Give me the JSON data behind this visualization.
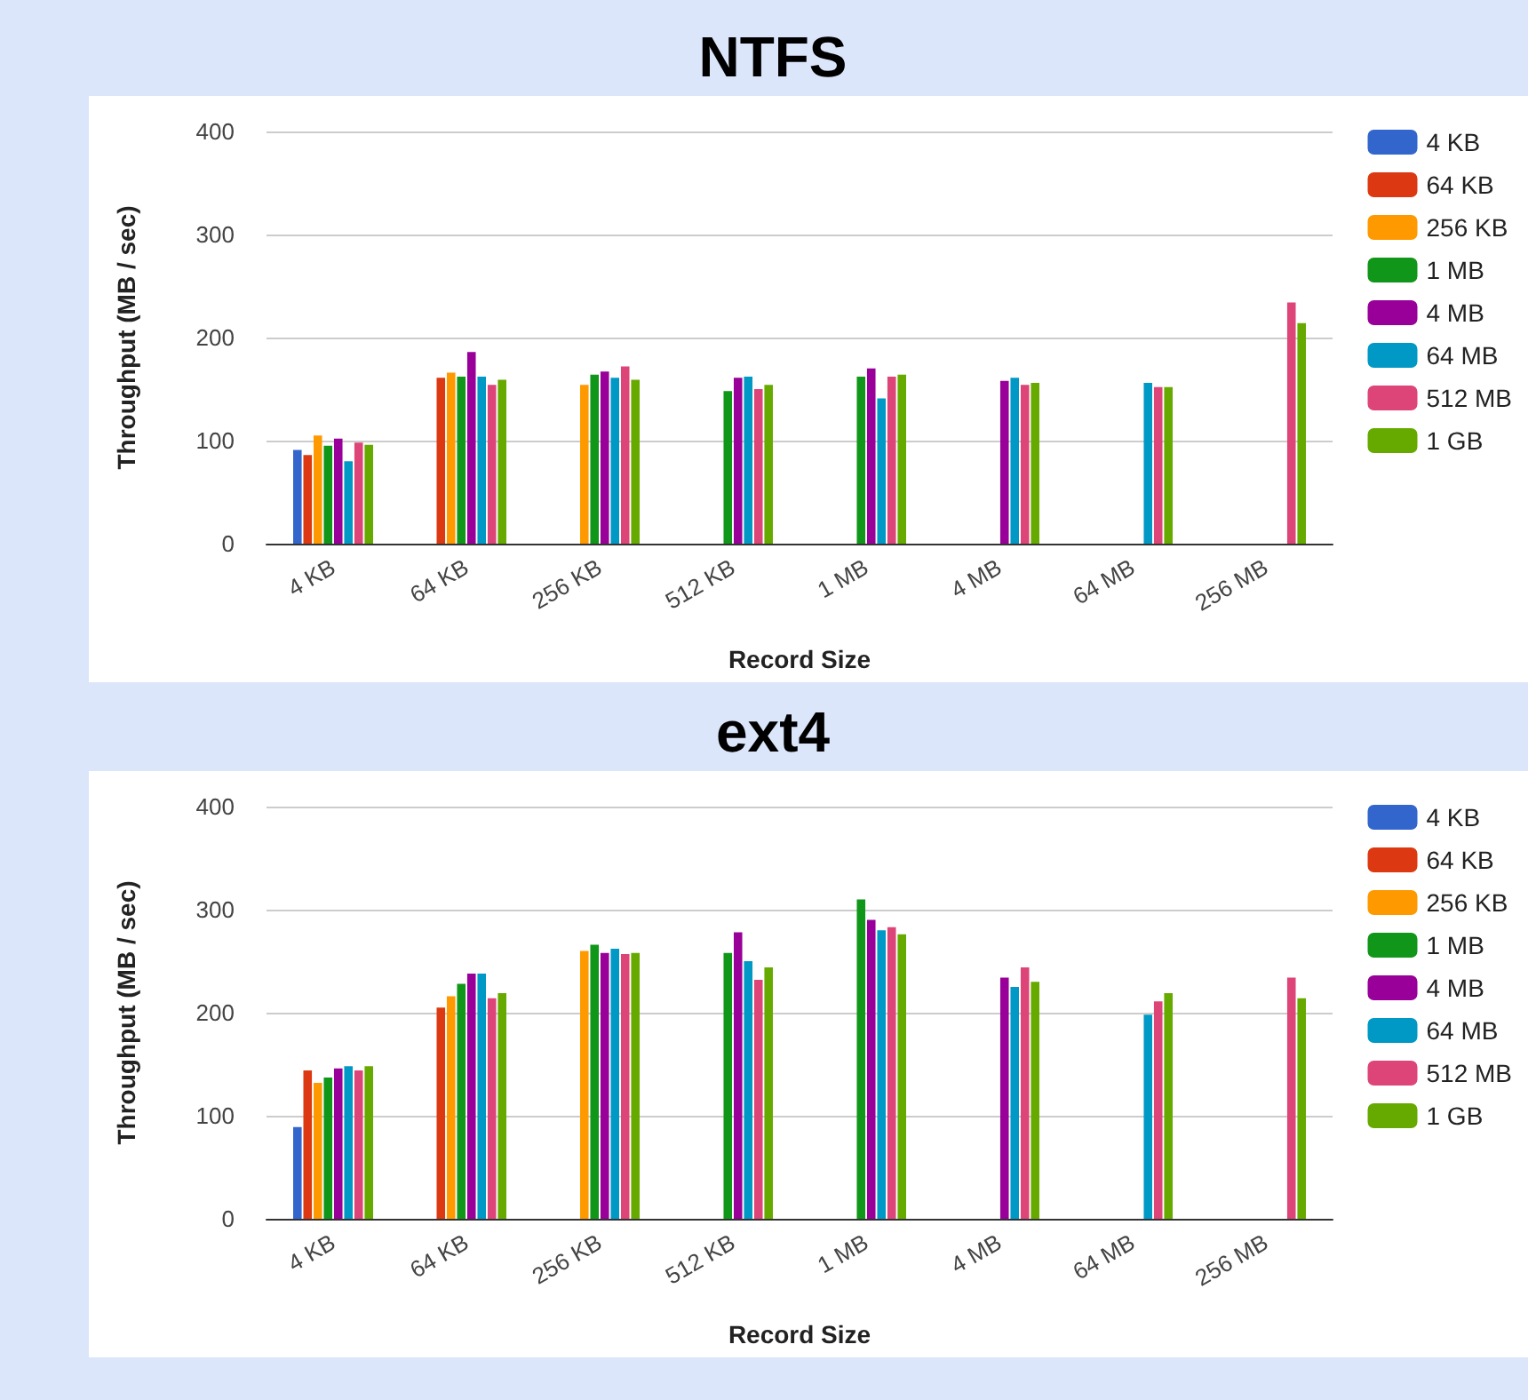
{
  "chart_data": [
    {
      "type": "bar",
      "title": "NTFS",
      "xlabel": "Record Size",
      "ylabel": "Throughput (MB / sec)",
      "categories": [
        "4 KB",
        "64 KB",
        "256 KB",
        "512 KB",
        "1 MB",
        "4 MB",
        "64 MB",
        "256 MB"
      ],
      "ylim": [
        0,
        400
      ],
      "yticks": [
        0,
        100,
        200,
        300,
        400
      ],
      "grid": "y",
      "legend": "right",
      "series": [
        {
          "name": "4 KB",
          "color": "#3366cc",
          "values": [
            91,
            null,
            null,
            null,
            null,
            null,
            null,
            null
          ]
        },
        {
          "name": "64 KB",
          "color": "#dc3912",
          "values": [
            86,
            161,
            null,
            null,
            null,
            null,
            null,
            null
          ]
        },
        {
          "name": "256 KB",
          "color": "#ff9900",
          "values": [
            105,
            166,
            154,
            null,
            null,
            null,
            null,
            null
          ]
        },
        {
          "name": "1 MB",
          "color": "#109618",
          "values": [
            95,
            162,
            164,
            148,
            162,
            null,
            null,
            null
          ]
        },
        {
          "name": "4 MB",
          "color": "#990099",
          "values": [
            102,
            186,
            167,
            161,
            170,
            158,
            null,
            null
          ]
        },
        {
          "name": "64 MB",
          "color": "#0099c6",
          "values": [
            80,
            162,
            161,
            162,
            141,
            161,
            156,
            null
          ]
        },
        {
          "name": "512 MB",
          "color": "#dd4477",
          "values": [
            98,
            154,
            172,
            150,
            162,
            154,
            152,
            234
          ]
        },
        {
          "name": "1 GB",
          "color": "#66aa00",
          "values": [
            96,
            159,
            159,
            154,
            164,
            156,
            152,
            214
          ]
        }
      ]
    },
    {
      "type": "bar",
      "title": "ext4",
      "xlabel": "Record Size",
      "ylabel": "Throughput (MB / sec)",
      "categories": [
        "4 KB",
        "64 KB",
        "256 KB",
        "512 KB",
        "1 MB",
        "4 MB",
        "64 MB",
        "256 MB"
      ],
      "ylim": [
        0,
        400
      ],
      "yticks": [
        0,
        100,
        200,
        300,
        400
      ],
      "grid": "y",
      "legend": "right",
      "series": [
        {
          "name": "4 KB",
          "color": "#3366cc",
          "values": [
            89,
            null,
            null,
            null,
            null,
            null,
            null,
            null
          ]
        },
        {
          "name": "64 KB",
          "color": "#dc3912",
          "values": [
            144,
            205,
            null,
            null,
            null,
            null,
            null,
            null
          ]
        },
        {
          "name": "256 KB",
          "color": "#ff9900",
          "values": [
            132,
            216,
            260,
            null,
            null,
            null,
            null,
            null
          ]
        },
        {
          "name": "1 MB",
          "color": "#109618",
          "values": [
            137,
            228,
            266,
            258,
            310,
            null,
            null,
            null
          ]
        },
        {
          "name": "4 MB",
          "color": "#990099",
          "values": [
            146,
            238,
            258,
            278,
            290,
            234,
            null,
            null
          ]
        },
        {
          "name": "64 MB",
          "color": "#0099c6",
          "values": [
            148,
            238,
            262,
            250,
            280,
            225,
            198,
            null
          ]
        },
        {
          "name": "512 MB",
          "color": "#dd4477",
          "values": [
            144,
            214,
            257,
            232,
            283,
            244,
            211,
            234
          ]
        },
        {
          "name": "1 GB",
          "color": "#66aa00",
          "values": [
            148,
            219,
            258,
            244,
            276,
            230,
            219,
            214
          ]
        }
      ]
    }
  ]
}
